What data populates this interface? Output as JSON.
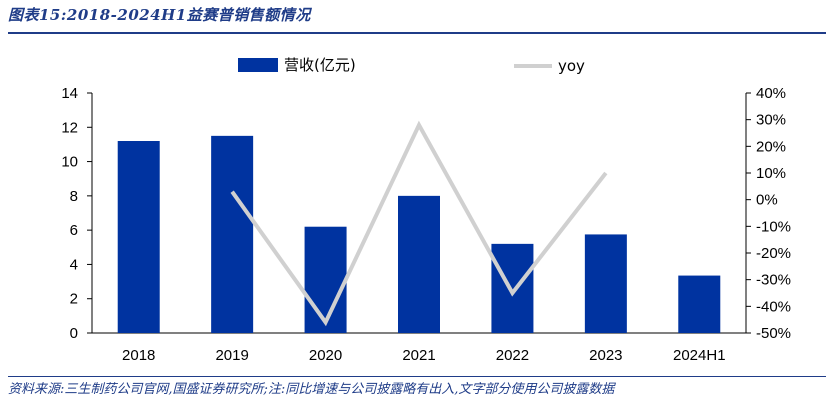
{
  "header": {
    "title": "图表15:2018-2024H1益赛普销售额情况"
  },
  "footer": {
    "source": "资料来源:三生制药公司官网,国盛证券研究所;注:同比增速与公司披露略有出入,文字部分使用公司披露数据"
  },
  "colors": {
    "bar": "#0033a0",
    "line": "#d0d0d0",
    "accent": "#1f3c88"
  },
  "chart_data": {
    "type": "bar",
    "categories": [
      "2018",
      "2019",
      "2020",
      "2021",
      "2022",
      "2023",
      "2024H1"
    ],
    "series": [
      {
        "name": "营收(亿元)",
        "type": "bar",
        "axis": "left",
        "values": [
          11.2,
          11.5,
          6.2,
          8.0,
          5.2,
          5.75,
          3.35
        ]
      },
      {
        "name": "yoy",
        "type": "line",
        "axis": "right",
        "values": [
          null,
          0.03,
          -0.46,
          0.28,
          -0.35,
          0.1,
          null
        ]
      }
    ],
    "y_left": {
      "ylim": [
        0,
        14
      ],
      "ticks": [
        "0",
        "2",
        "4",
        "6",
        "8",
        "10",
        "12",
        "14"
      ]
    },
    "y_right": {
      "ylim": [
        -0.5,
        0.4
      ],
      "ticks": [
        "-50%",
        "-40%",
        "-30%",
        "-20%",
        "-10%",
        "0%",
        "10%",
        "20%",
        "30%",
        "40%"
      ]
    },
    "legend": {
      "placement": "top"
    },
    "grid": false
  }
}
